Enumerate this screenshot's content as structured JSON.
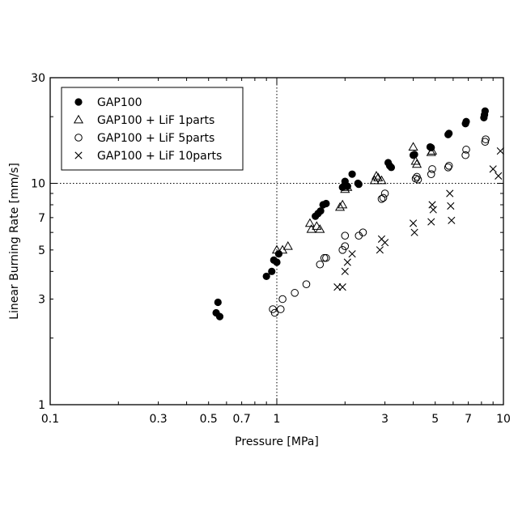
{
  "chart_data": {
    "type": "scatter",
    "xlabel": "Pressure [MPa]",
    "ylabel": "Linear Burning Rate [mm/s]",
    "xscale": "log",
    "yscale": "log",
    "xlim": [
      0.1,
      10
    ],
    "ylim": [
      1,
      30
    ],
    "x_ticks": [
      0.1,
      0.3,
      0.5,
      0.7,
      1,
      3,
      5,
      7,
      10
    ],
    "x_tick_labels": [
      "0.1",
      "0.3",
      "0.5",
      "0.7",
      "1",
      "3",
      "5",
      "7",
      "10"
    ],
    "y_ticks": [
      1,
      3,
      5,
      7,
      10,
      30
    ],
    "y_tick_labels": [
      "1",
      "3",
      "5",
      "7",
      "10",
      "30"
    ],
    "reference_lines": {
      "x": 1,
      "y": 10,
      "style": "dotted"
    },
    "legend_position": "top-left",
    "series": [
      {
        "name": "GAP100",
        "marker": "filled-circle",
        "points": [
          [
            0.54,
            2.6
          ],
          [
            0.55,
            2.9
          ],
          [
            0.56,
            2.5
          ],
          [
            0.9,
            3.8
          ],
          [
            0.95,
            4.0
          ],
          [
            0.97,
            4.5
          ],
          [
            1.0,
            4.4
          ],
          [
            1.02,
            4.8
          ],
          [
            1.48,
            7.1
          ],
          [
            1.52,
            7.3
          ],
          [
            1.56,
            7.5
          ],
          [
            1.6,
            8.0
          ],
          [
            1.65,
            8.1
          ],
          [
            1.95,
            9.6
          ],
          [
            2.0,
            10.2
          ],
          [
            2.05,
            9.7
          ],
          [
            2.15,
            11.0
          ],
          [
            2.28,
            10.0
          ],
          [
            2.3,
            9.9
          ],
          [
            3.1,
            12.4
          ],
          [
            3.15,
            12.0
          ],
          [
            3.2,
            11.8
          ],
          [
            4.0,
            13.4
          ],
          [
            4.05,
            13.5
          ],
          [
            4.75,
            14.6
          ],
          [
            4.8,
            14.5
          ],
          [
            5.7,
            16.6
          ],
          [
            5.75,
            16.8
          ],
          [
            6.8,
            18.6
          ],
          [
            6.85,
            19.0
          ],
          [
            8.2,
            19.8
          ],
          [
            8.25,
            20.4
          ],
          [
            8.3,
            21.2
          ]
        ]
      },
      {
        "name": "GAP100 + LiF 1parts",
        "marker": "open-triangle",
        "points": [
          [
            1.0,
            5.0
          ],
          [
            1.06,
            5.0
          ],
          [
            1.12,
            5.2
          ],
          [
            1.4,
            6.6
          ],
          [
            1.42,
            6.2
          ],
          [
            1.5,
            6.4
          ],
          [
            1.55,
            6.2
          ],
          [
            1.9,
            7.8
          ],
          [
            1.95,
            8.0
          ],
          [
            2.0,
            9.4
          ],
          [
            2.05,
            9.6
          ],
          [
            2.7,
            10.3
          ],
          [
            2.75,
            10.8
          ],
          [
            2.8,
            10.6
          ],
          [
            2.9,
            10.3
          ],
          [
            4.0,
            14.6
          ],
          [
            4.1,
            12.6
          ],
          [
            4.15,
            12.2
          ],
          [
            4.8,
            13.8
          ],
          [
            4.85,
            14.0
          ]
        ]
      },
      {
        "name": "GAP100 + LiF 5parts",
        "marker": "open-circle",
        "points": [
          [
            0.96,
            2.7
          ],
          [
            0.98,
            2.6
          ],
          [
            1.04,
            2.7
          ],
          [
            1.06,
            3.0
          ],
          [
            1.2,
            3.2
          ],
          [
            1.35,
            3.5
          ],
          [
            1.55,
            4.3
          ],
          [
            1.62,
            4.6
          ],
          [
            1.65,
            4.6
          ],
          [
            1.95,
            5.0
          ],
          [
            2.0,
            5.2
          ],
          [
            2.0,
            5.8
          ],
          [
            2.3,
            5.8
          ],
          [
            2.4,
            6.0
          ],
          [
            2.9,
            8.5
          ],
          [
            2.95,
            8.6
          ],
          [
            3.0,
            9.0
          ],
          [
            4.1,
            10.5
          ],
          [
            4.15,
            10.7
          ],
          [
            4.2,
            10.4
          ],
          [
            4.8,
            11.0
          ],
          [
            4.85,
            11.6
          ],
          [
            5.7,
            11.8
          ],
          [
            5.75,
            12.0
          ],
          [
            6.8,
            13.4
          ],
          [
            6.85,
            14.2
          ],
          [
            8.3,
            15.4
          ],
          [
            8.35,
            15.8
          ]
        ]
      },
      {
        "name": "GAP100 + LiF 10parts",
        "marker": "cross",
        "points": [
          [
            1.85,
            3.4
          ],
          [
            1.95,
            3.4
          ],
          [
            2.0,
            4.0
          ],
          [
            2.05,
            4.4
          ],
          [
            2.15,
            4.8
          ],
          [
            2.85,
            5.0
          ],
          [
            2.9,
            5.6
          ],
          [
            3.0,
            5.4
          ],
          [
            4.0,
            6.6
          ],
          [
            4.05,
            6.0
          ],
          [
            4.8,
            6.7
          ],
          [
            4.85,
            8.0
          ],
          [
            4.9,
            7.6
          ],
          [
            5.8,
            9.0
          ],
          [
            5.85,
            7.9
          ],
          [
            5.9,
            6.8
          ],
          [
            9.0,
            11.6
          ],
          [
            9.5,
            10.8
          ],
          [
            9.7,
            14.0
          ]
        ]
      }
    ]
  }
}
